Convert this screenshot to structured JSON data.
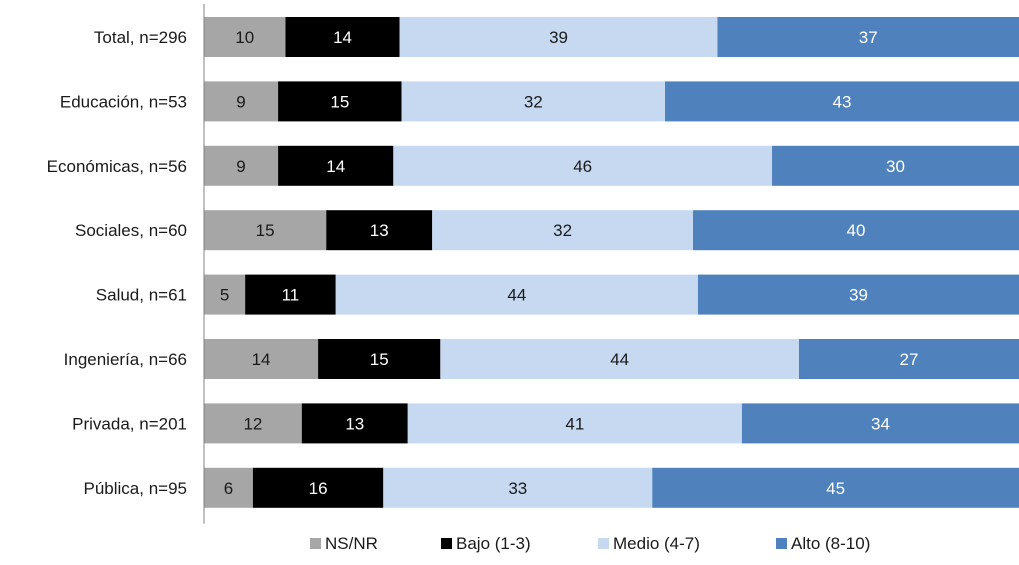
{
  "chart_data": {
    "type": "bar",
    "orientation": "horizontal",
    "stacked": true,
    "percent_stacked": true,
    "title": "",
    "xlabel": "",
    "ylabel": "",
    "grid": false,
    "legend_position": "bottom",
    "categories": [
      "Total, n=296",
      "Educación, n=53",
      "Económicas, n=56",
      "Sociales, n=60",
      "Salud, n=61",
      "Ingeniería, n=66",
      "Privada, n=201",
      "Pública, n=95"
    ],
    "series": [
      {
        "name": "NS/NR",
        "color": "#a6a6a6",
        "label_color": "#1a1a1a",
        "values": [
          10,
          9,
          9,
          15,
          5,
          14,
          12,
          6
        ]
      },
      {
        "name": "Bajo (1-3)",
        "color": "#000000",
        "label_color": "#ffffff",
        "values": [
          14,
          15,
          14,
          13,
          11,
          15,
          13,
          16
        ]
      },
      {
        "name": "Medio (4-7)",
        "color": "#c6d9f1",
        "label_color": "#1a1a1a",
        "values": [
          39,
          32,
          46,
          32,
          44,
          44,
          41,
          33
        ]
      },
      {
        "name": "Alto (8-10)",
        "color": "#4f81bd",
        "label_color": "#ffffff",
        "values": [
          37,
          43,
          30,
          40,
          39,
          27,
          34,
          45
        ]
      }
    ]
  }
}
